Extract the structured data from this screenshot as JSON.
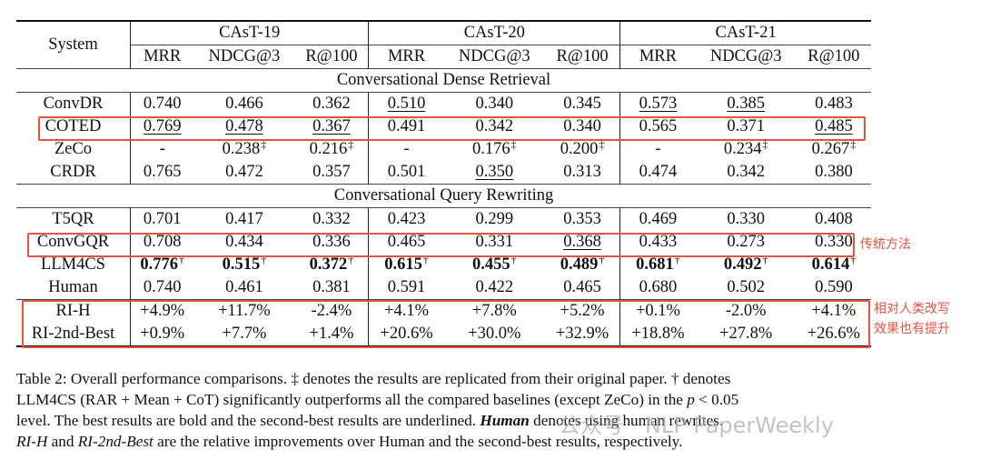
{
  "table": {
    "system_header": "System",
    "groups": [
      "CAsT-19",
      "CAsT-20",
      "CAsT-21"
    ],
    "metrics": [
      "MRR",
      "NDCG@3",
      "R@100",
      "MRR",
      "NDCG@3",
      "R@100",
      "MRR",
      "NDCG@3",
      "R@100"
    ],
    "sections": [
      {
        "title": "Conversational Dense Retrieval",
        "rows": [
          {
            "system": "ConvDR",
            "cells": [
              {
                "v": "0.740"
              },
              {
                "v": "0.466"
              },
              {
                "v": "0.362"
              },
              {
                "v": "0.510",
                "u": true
              },
              {
                "v": "0.340"
              },
              {
                "v": "0.345"
              },
              {
                "v": "0.573",
                "u": true
              },
              {
                "v": "0.385",
                "u": true
              },
              {
                "v": "0.483"
              }
            ]
          },
          {
            "system": "COTED",
            "cells": [
              {
                "v": "0.769",
                "u": true
              },
              {
                "v": "0.478",
                "u": true
              },
              {
                "v": "0.367",
                "u": true
              },
              {
                "v": "0.491"
              },
              {
                "v": "0.342"
              },
              {
                "v": "0.340"
              },
              {
                "v": "0.565"
              },
              {
                "v": "0.371"
              },
              {
                "v": "0.485",
                "u": true
              }
            ]
          },
          {
            "system": "ZeCo",
            "cells": [
              {
                "v": "-"
              },
              {
                "v": "0.238",
                "s": "‡"
              },
              {
                "v": "0.216",
                "s": "‡"
              },
              {
                "v": "-"
              },
              {
                "v": "0.176",
                "s": "‡"
              },
              {
                "v": "0.200",
                "s": "‡"
              },
              {
                "v": "-"
              },
              {
                "v": "0.234",
                "s": "‡"
              },
              {
                "v": "0.267",
                "s": "‡"
              }
            ]
          },
          {
            "system": "CRDR",
            "cells": [
              {
                "v": "0.765"
              },
              {
                "v": "0.472"
              },
              {
                "v": "0.357"
              },
              {
                "v": "0.501"
              },
              {
                "v": "0.350",
                "u": true
              },
              {
                "v": "0.313"
              },
              {
                "v": "0.474"
              },
              {
                "v": "0.342"
              },
              {
                "v": "0.380"
              }
            ]
          }
        ]
      },
      {
        "title": "Conversational Query Rewriting",
        "rows": [
          {
            "system": "T5QR",
            "cells": [
              {
                "v": "0.701"
              },
              {
                "v": "0.417"
              },
              {
                "v": "0.332"
              },
              {
                "v": "0.423"
              },
              {
                "v": "0.299"
              },
              {
                "v": "0.353"
              },
              {
                "v": "0.469"
              },
              {
                "v": "0.330"
              },
              {
                "v": "0.408"
              }
            ]
          },
          {
            "system": "ConvGQR",
            "cells": [
              {
                "v": "0.708"
              },
              {
                "v": "0.434"
              },
              {
                "v": "0.336"
              },
              {
                "v": "0.465"
              },
              {
                "v": "0.331"
              },
              {
                "v": "0.368",
                "u": true
              },
              {
                "v": "0.433"
              },
              {
                "v": "0.273"
              },
              {
                "v": "0.330"
              }
            ]
          },
          {
            "system": "LLM4CS",
            "cells": [
              {
                "v": "0.776",
                "b": true,
                "s": "†"
              },
              {
                "v": "0.515",
                "b": true,
                "s": "†"
              },
              {
                "v": "0.372",
                "b": true,
                "s": "†"
              },
              {
                "v": "0.615",
                "b": true,
                "s": "†"
              },
              {
                "v": "0.455",
                "b": true,
                "s": "†"
              },
              {
                "v": "0.489",
                "b": true,
                "s": "†"
              },
              {
                "v": "0.681",
                "b": true,
                "s": "†"
              },
              {
                "v": "0.492",
                "b": true,
                "s": "†"
              },
              {
                "v": "0.614",
                "b": true,
                "s": "†"
              }
            ]
          },
          {
            "system": "Human",
            "cells": [
              {
                "v": "0.740"
              },
              {
                "v": "0.461"
              },
              {
                "v": "0.381"
              },
              {
                "v": "0.591"
              },
              {
                "v": "0.422"
              },
              {
                "v": "0.465"
              },
              {
                "v": "0.680"
              },
              {
                "v": "0.502"
              },
              {
                "v": "0.590"
              }
            ]
          }
        ]
      }
    ],
    "improvement_rows": [
      {
        "system": "RI-H",
        "cells": [
          {
            "v": "+4.9%"
          },
          {
            "v": "+11.7%"
          },
          {
            "v": "-2.4%"
          },
          {
            "v": "+4.1%"
          },
          {
            "v": "+7.8%"
          },
          {
            "v": "+5.2%"
          },
          {
            "v": "+0.1%"
          },
          {
            "v": "-2.0%"
          },
          {
            "v": "+4.1%"
          }
        ]
      },
      {
        "system": "RI-2nd-Best",
        "cells": [
          {
            "v": "+0.9%"
          },
          {
            "v": "+7.7%"
          },
          {
            "v": "+1.4%"
          },
          {
            "v": "+20.6%"
          },
          {
            "v": "+30.0%"
          },
          {
            "v": "+32.9%"
          },
          {
            "v": "+18.8%"
          },
          {
            "v": "+27.8%"
          },
          {
            "v": "+26.6%"
          }
        ]
      }
    ]
  },
  "annotations": {
    "color": "#e8533f",
    "traditional_methods": "传统方法",
    "improvement_line1": "相对人类改写",
    "improvement_line2": "效果也有提升"
  },
  "caption": {
    "l1a": "Table 2: Overall performance comparisons. ‡ denotes the results are replicated from their original paper. † denotes",
    "l2a": "LLM4CS (RAR + Mean + CoT) significantly outperforms all the compared baselines (except ZeCo) in the ",
    "l2p": "p",
    "l2b": " < 0.05",
    "l3a": "level. The best results are bold and the second-best results are underlined. ",
    "l3h": "Human",
    "l3b": " denotes using human rewrites.",
    "l4ri": "RI-H",
    "l4a": " and ",
    "l4rb": "RI-2nd-Best",
    "l4b": " are the relative improvements over Human and the second-best results, respectively."
  },
  "watermark": "公众号 · NLP PaperWeekly"
}
